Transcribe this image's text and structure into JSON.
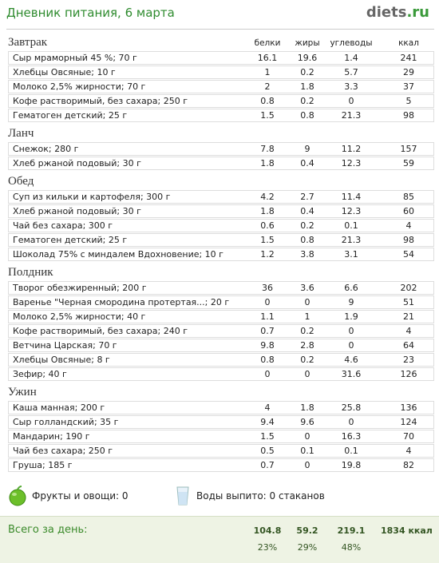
{
  "header": {
    "title": "Дневник питания, 6 марта",
    "logo": "diets",
    "logo_suffix": ".ru"
  },
  "columns": [
    "белки",
    "жиры",
    "углеводы",
    "ккал"
  ],
  "meals": [
    {
      "name": "Завтрак",
      "items": [
        {
          "name": "Сыр мраморный 45 %; 70 г",
          "values": [
            "16.1",
            "19.6",
            "1.4",
            "241"
          ]
        },
        {
          "name": "Хлебцы Овсяные; 10 г",
          "values": [
            "1",
            "0.2",
            "5.7",
            "29"
          ]
        },
        {
          "name": "Молоко 2,5% жирности; 70 г",
          "values": [
            "2",
            "1.8",
            "3.3",
            "37"
          ]
        },
        {
          "name": "Кофе растворимый, без сахара; 250 г",
          "values": [
            "0.8",
            "0.2",
            "0",
            "5"
          ]
        },
        {
          "name": "Гематоген детский; 25 г",
          "values": [
            "1.5",
            "0.8",
            "21.3",
            "98"
          ]
        }
      ]
    },
    {
      "name": "Ланч",
      "items": [
        {
          "name": "Снежок; 280 г",
          "values": [
            "7.8",
            "9",
            "11.2",
            "157"
          ]
        },
        {
          "name": "Хлеб ржаной подовый; 30 г",
          "values": [
            "1.8",
            "0.4",
            "12.3",
            "59"
          ]
        }
      ]
    },
    {
      "name": "Обед",
      "items": [
        {
          "name": "Суп из кильки и картофеля; 300 г",
          "values": [
            "4.2",
            "2.7",
            "11.4",
            "85"
          ]
        },
        {
          "name": "Хлеб ржаной подовый; 30 г",
          "values": [
            "1.8",
            "0.4",
            "12.3",
            "60"
          ]
        },
        {
          "name": "Чай без сахара; 300 г",
          "values": [
            "0.6",
            "0.2",
            "0.1",
            "4"
          ]
        },
        {
          "name": "Гематоген детский; 25 г",
          "values": [
            "1.5",
            "0.8",
            "21.3",
            "98"
          ]
        },
        {
          "name": "Шоколад 75% с миндалем Вдохновение; 10 г",
          "values": [
            "1.2",
            "3.8",
            "3.1",
            "54"
          ]
        }
      ]
    },
    {
      "name": "Полдник",
      "items": [
        {
          "name": "Творог обезжиренный; 200 г",
          "values": [
            "36",
            "3.6",
            "6.6",
            "202"
          ]
        },
        {
          "name": "Варенье \"Черная смородина протертая...; 20 г",
          "values": [
            "0",
            "0",
            "9",
            "51"
          ]
        },
        {
          "name": "Молоко 2,5% жирности; 40 г",
          "values": [
            "1.1",
            "1",
            "1.9",
            "21"
          ]
        },
        {
          "name": "Кофе растворимый, без сахара; 240 г",
          "values": [
            "0.7",
            "0.2",
            "0",
            "4"
          ]
        },
        {
          "name": "Ветчина Царская; 70 г",
          "values": [
            "9.8",
            "2.8",
            "0",
            "64"
          ]
        },
        {
          "name": "Хлебцы Овсяные; 8 г",
          "values": [
            "0.8",
            "0.2",
            "4.6",
            "23"
          ]
        },
        {
          "name": "Зефир; 40 г",
          "values": [
            "0",
            "0",
            "31.6",
            "126"
          ]
        }
      ]
    },
    {
      "name": "Ужин",
      "items": [
        {
          "name": "Каша манная; 200 г",
          "values": [
            "4",
            "1.8",
            "25.8",
            "136"
          ]
        },
        {
          "name": "Сыр голландский; 35 г",
          "values": [
            "9.4",
            "9.6",
            "0",
            "124"
          ]
        },
        {
          "name": "Мандарин; 190 г",
          "values": [
            "1.5",
            "0",
            "16.3",
            "70"
          ]
        },
        {
          "name": "Чай без сахара; 250 г",
          "values": [
            "0.5",
            "0.1",
            "0.1",
            "4"
          ]
        },
        {
          "name": "Груша; 185 г",
          "values": [
            "0.7",
            "0",
            "19.8",
            "82"
          ]
        }
      ]
    }
  ],
  "footer": {
    "fruits": "Фрукты и овощи: 0",
    "water": "Воды выпито: 0 стаканов"
  },
  "total": {
    "label": "Всего за день:",
    "values": [
      "104.8",
      "59.2",
      "219.1",
      "1834 ккал"
    ],
    "percents": [
      "23%",
      "29%",
      "48%"
    ]
  }
}
